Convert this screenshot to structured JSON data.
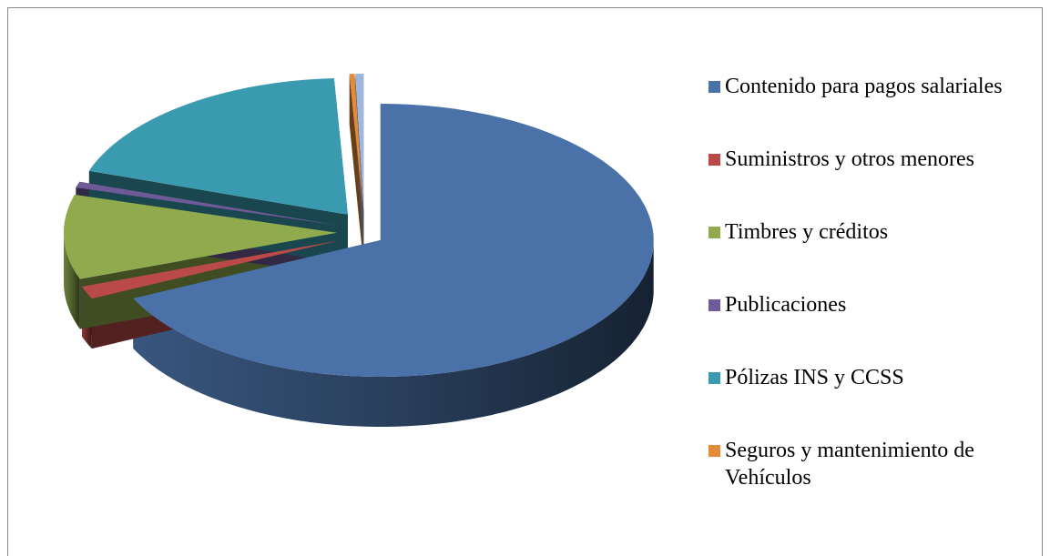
{
  "chart_data": {
    "type": "pie",
    "is_3d": true,
    "exploded": true,
    "categories": [
      "Contenido para pagos salariales",
      "Suministros y otros menores",
      "Timbres y créditos",
      "Publicaciones",
      "Pólizas INS y CCSS",
      "Seguros y mantenimiento de Vehículos",
      null
    ],
    "values": [
      68,
      1.5,
      10,
      0.7,
      19,
      0.3,
      0.5
    ],
    "colors": [
      "#4a72a8",
      "#b94a48",
      "#8fab4e",
      "#6e5a96",
      "#3a9bb0",
      "#e38b38",
      "#9fb7de"
    ],
    "legend": "right"
  }
}
